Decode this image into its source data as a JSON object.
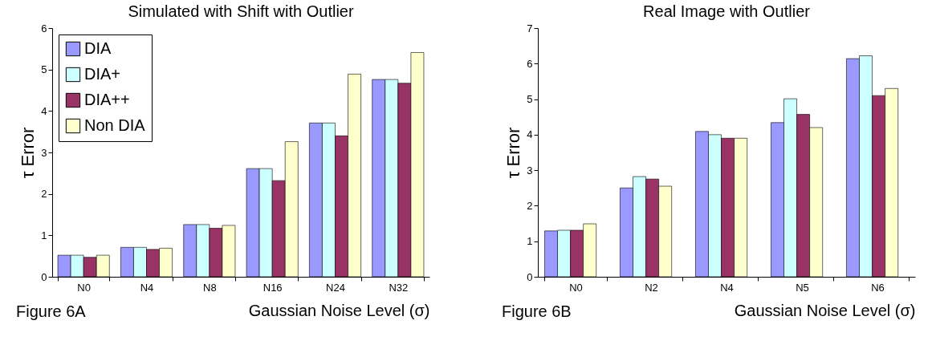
{
  "chart_data": [
    {
      "type": "bar",
      "title": "Simulated with Shift with Outlier",
      "xlabel": "Gaussian Noise Level (σ)",
      "ylabel": "τ Error",
      "categories": [
        "N0",
        "N4",
        "N8",
        "N16",
        "N24",
        "N32"
      ],
      "series": [
        {
          "name": "DIA",
          "color": "#9999ff",
          "values": [
            0.52,
            0.71,
            1.26,
            2.61,
            3.71,
            4.76
          ]
        },
        {
          "name": "DIA+",
          "color": "#ccffff",
          "values": [
            0.52,
            0.71,
            1.26,
            2.61,
            3.71,
            4.76
          ]
        },
        {
          "name": "DIA++",
          "color": "#993366",
          "values": [
            0.47,
            0.66,
            1.17,
            2.32,
            3.4,
            4.67
          ]
        },
        {
          "name": "Non DIA",
          "color": "#ffffcc",
          "values": [
            0.52,
            0.69,
            1.24,
            3.26,
            4.89,
            5.41
          ]
        }
      ],
      "ylim": [
        0,
        6
      ],
      "yticks": [
        0,
        1,
        2,
        3,
        4,
        5,
        6
      ],
      "grid": false,
      "legend": "top left",
      "annotations": [
        "Figure 6A"
      ]
    },
    {
      "type": "bar",
      "title": "Real Image with Outlier",
      "xlabel": "Gaussian Noise Level (σ)",
      "ylabel": "τ Error",
      "categories": [
        "N0",
        "N2",
        "N4",
        "N5",
        "N6"
      ],
      "series": [
        {
          "color": "#9999ff",
          "values": [
            1.29,
            2.5,
            4.09,
            4.34,
            6.14
          ]
        },
        {
          "color": "#ccffff",
          "values": [
            1.31,
            2.82,
            4.0,
            5.01,
            6.22
          ]
        },
        {
          "color": "#993366",
          "values": [
            1.31,
            2.75,
            3.9,
            4.57,
            5.1
          ]
        },
        {
          "color": "#ffffcc",
          "values": [
            1.49,
            2.55,
            3.9,
            4.2,
            5.3
          ]
        }
      ],
      "ylim": [
        0,
        7
      ],
      "yticks": [
        0,
        1,
        2,
        3,
        4,
        5,
        6,
        7
      ],
      "grid": false,
      "legend": false,
      "annotations": [
        "Figure 6B"
      ]
    }
  ]
}
